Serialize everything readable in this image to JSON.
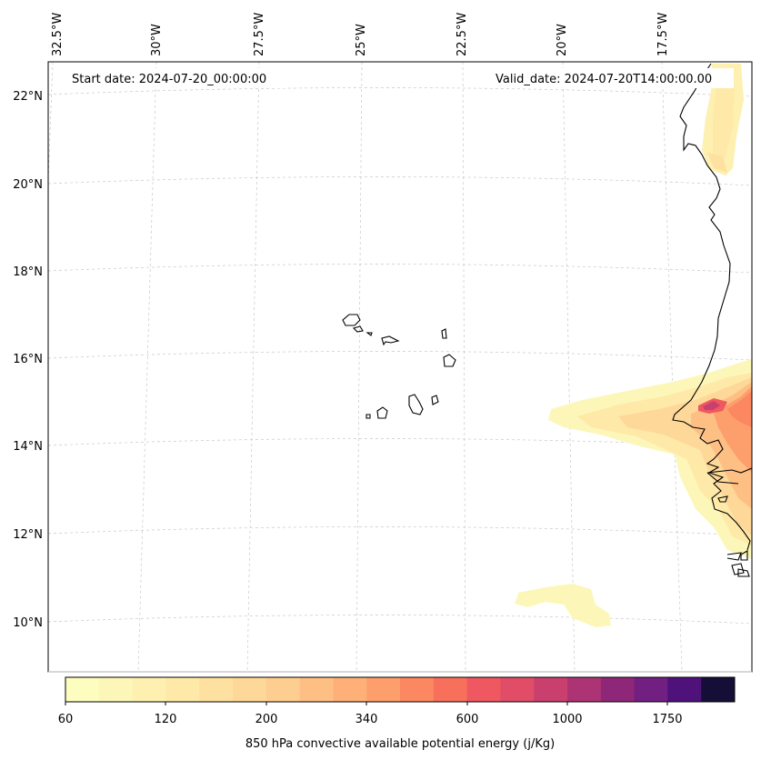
{
  "map": {
    "start_date": "Start date: 2024-07-20_00:00:00",
    "valid_date": "Valid_date: 2024-07-20T14:00:00.00",
    "lon_labels": [
      "32.5°W",
      "30°W",
      "27.5°W",
      "25°W",
      "22.5°W",
      "20°W",
      "17.5°W"
    ],
    "lat_labels": [
      "22°N",
      "20°N",
      "18°N",
      "16°N",
      "14°N",
      "12°N",
      "10°N"
    ],
    "gridlines": true
  },
  "colorbar": {
    "label": "850 hPa convective available potential energy (j/Kg)",
    "tick_labels": [
      "60",
      "120",
      "200",
      "340",
      "600",
      "1000",
      "1750"
    ],
    "colors": [
      "#fcfdbf",
      "#fcf7b9",
      "#fdf0b0",
      "#fee9a8",
      "#fee1a0",
      "#fed899",
      "#fecd90",
      "#febf84",
      "#feb078",
      "#fd9f6c",
      "#fb8861",
      "#f7705c",
      "#ef5860",
      "#e14d67",
      "#c93f6d",
      "#ad3474",
      "#8f2778",
      "#711f81",
      "#4f127b",
      "#150e37"
    ],
    "palette": "magma_r"
  }
}
